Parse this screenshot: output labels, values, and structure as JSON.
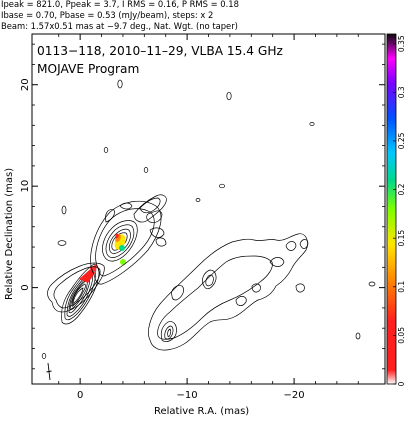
{
  "header_lines": [
    "Ipeak = 821.0, Ppeak = 3.7, I RMS = 0.16, P RMS = 0.18",
    "Ibase = 0.70, Pbase = 0.53 (mJy/beam), steps: x 2",
    "Beam: 1.57x0.51 mas at −9.7 deg., Nat. Wgt. (no taper)"
  ],
  "plot": {
    "title": "0113−118, 2010–11–29, VLBA 15.4 GHz",
    "subtitle": "MOJAVE Program"
  },
  "axes": {
    "x_label": "Relative R.A. (mas)",
    "y_label": "Relative Declination (mas)",
    "x_ticks": [
      {
        "value": 0,
        "label": "0"
      },
      {
        "value": -10,
        "label": "−10"
      },
      {
        "value": -20,
        "label": "−20"
      }
    ],
    "y_ticks": [
      {
        "value": 0,
        "label": "0"
      },
      {
        "value": 10,
        "label": "10"
      },
      {
        "value": 20,
        "label": "20"
      }
    ],
    "x_range": [
      4.5,
      -28.5
    ],
    "y_range": [
      -9.5,
      25
    ]
  },
  "colorbar": {
    "ticks": [
      "0.35",
      "0.3",
      "0.25",
      "0.2",
      "0.15",
      "0.1",
      "0.05",
      "0"
    ],
    "range": [
      0,
      0.36
    ]
  }
}
